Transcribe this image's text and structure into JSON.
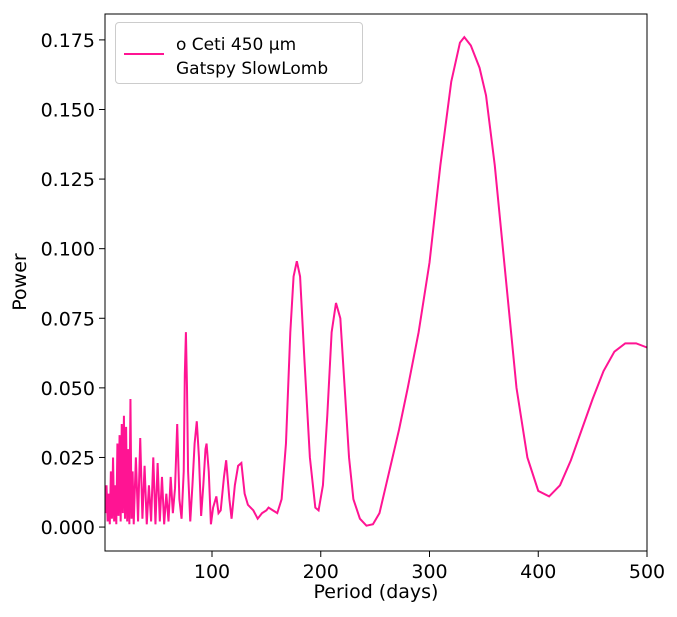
{
  "chart_data": {
    "type": "line",
    "xlabel": "Period (days)",
    "ylabel": "Power",
    "xlim": [
      1.6,
      500
    ],
    "ylim": [
      -0.0086,
      0.1843
    ],
    "xticks": [
      100,
      200,
      300,
      400,
      500
    ],
    "yticks": [
      {
        "value": 0,
        "label": "0.000"
      },
      {
        "value": 0.025,
        "label": "0.025"
      },
      {
        "value": 0.05,
        "label": "0.050"
      },
      {
        "value": 0.075,
        "label": "0.075"
      },
      {
        "value": 0.1,
        "label": "0.100"
      },
      {
        "value": 0.125,
        "label": "0.125"
      },
      {
        "value": 0.15,
        "label": "0.150"
      },
      {
        "value": 0.175,
        "label": "0.175"
      }
    ],
    "x": [
      2,
      3,
      4,
      5,
      6,
      7,
      8,
      9,
      10,
      11,
      12,
      13,
      14,
      15,
      16,
      17,
      18,
      19,
      20,
      21,
      22,
      23,
      24,
      25,
      26,
      27,
      28,
      30,
      32,
      34,
      36,
      38,
      40,
      42,
      44,
      46,
      48,
      50,
      52,
      54,
      56,
      58,
      60,
      62,
      64,
      66,
      68,
      70,
      72,
      74,
      75,
      76,
      77,
      78,
      80,
      82,
      84,
      86,
      88,
      90,
      92,
      94,
      95,
      97,
      99,
      101,
      104,
      106,
      108,
      111,
      113,
      116,
      118,
      121,
      124,
      127,
      130,
      133,
      138,
      142,
      146,
      150,
      152,
      156,
      160,
      164,
      168,
      172,
      175,
      178,
      181,
      185,
      190,
      195,
      198,
      202,
      206,
      210,
      214,
      218,
      222,
      226,
      230,
      236,
      242,
      248,
      254,
      260,
      266,
      272,
      280,
      290,
      300,
      310,
      320,
      328,
      332,
      338,
      346,
      352,
      360,
      370,
      380,
      390,
      400,
      410,
      420,
      430,
      440,
      450,
      460,
      470,
      480,
      490,
      500
    ],
    "series": [
      {
        "name": "o Ceti 450 μm\nGatspy SlowLomb",
        "color": "#ff1493",
        "values": [
          0.005,
          0.015,
          0.002,
          0.012,
          0.001,
          0.02,
          0.003,
          0.025,
          0.002,
          0.015,
          0.001,
          0.03,
          0.004,
          0.033,
          0.002,
          0.037,
          0.005,
          0.04,
          0.003,
          0.036,
          0.002,
          0.028,
          0.001,
          0.046,
          0.003,
          0.02,
          0.001,
          0.025,
          0.002,
          0.032,
          0.003,
          0.022,
          0.001,
          0.015,
          0.002,
          0.025,
          0.001,
          0.023,
          0.002,
          0.018,
          0.001,
          0.012,
          0.002,
          0.018,
          0.005,
          0.014,
          0.037,
          0.01,
          0.003,
          0.02,
          0.055,
          0.07,
          0.05,
          0.02,
          0.002,
          0.015,
          0.03,
          0.038,
          0.025,
          0.004,
          0.015,
          0.028,
          0.03,
          0.02,
          0.001,
          0.007,
          0.011,
          0.005,
          0.006,
          0.018,
          0.024,
          0.01,
          0.003,
          0.015,
          0.022,
          0.023,
          0.012,
          0.008,
          0.006,
          0.003,
          0.005,
          0.006,
          0.007,
          0.006,
          0.005,
          0.01,
          0.03,
          0.07,
          0.09,
          0.0955,
          0.09,
          0.06,
          0.025,
          0.007,
          0.006,
          0.015,
          0.04,
          0.07,
          0.0805,
          0.075,
          0.05,
          0.025,
          0.01,
          0.003,
          0.0005,
          0.001,
          0.005,
          0.015,
          0.025,
          0.035,
          0.05,
          0.07,
          0.095,
          0.13,
          0.16,
          0.174,
          0.176,
          0.173,
          0.165,
          0.155,
          0.13,
          0.09,
          0.05,
          0.025,
          0.013,
          0.011,
          0.015,
          0.024,
          0.035,
          0.046,
          0.056,
          0.063,
          0.066,
          0.066,
          0.0645
        ]
      }
    ]
  }
}
